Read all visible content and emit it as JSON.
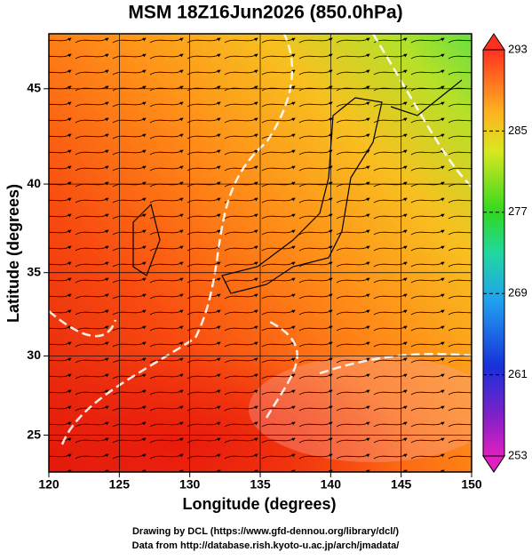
{
  "title": "MSM 18Z16Jun2026 (850.0hPa)",
  "x_axis": {
    "label": "Longitude (degrees)",
    "lim": [
      120,
      150
    ],
    "ticks": [
      120,
      125,
      130,
      135,
      140,
      145,
      150
    ]
  },
  "y_axis": {
    "label": "Latitude  (degrees)",
    "lim": [
      22.6,
      47.7
    ],
    "ticks": [
      25,
      30,
      35,
      40,
      45
    ],
    "projection": "mercator"
  },
  "colorbar": {
    "lim": [
      253,
      293
    ],
    "ticks": [
      253,
      261,
      269,
      277,
      285,
      293
    ]
  },
  "footer": [
    "Drawing by DCL (https://www.gfd-dennou.org/library/dcl/)",
    "Data from http://database.rish.kyoto-u.ac.jp/arch/jmadata/"
  ]
}
